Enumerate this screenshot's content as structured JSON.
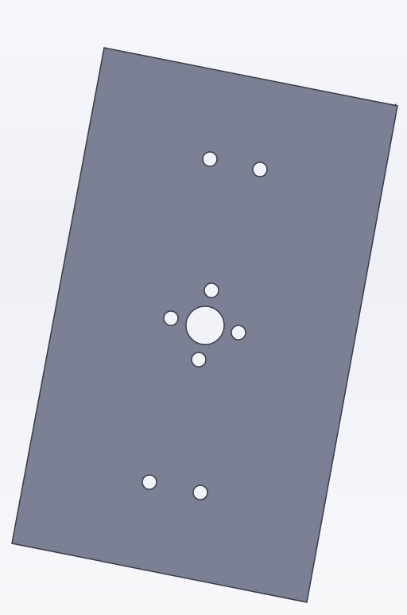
{
  "viewport": {
    "background": "#eef0f6"
  },
  "part": {
    "name": "plate",
    "face_color": "#7c8094",
    "edge_color": "#3a3c46",
    "hole_fill": "#f1f3f8",
    "holes": [
      {
        "id": "hole-top-left",
        "kind": "mount"
      },
      {
        "id": "hole-top-right",
        "kind": "mount"
      },
      {
        "id": "hole-motor-shaft",
        "kind": "center"
      },
      {
        "id": "hole-motor-top",
        "kind": "screw"
      },
      {
        "id": "hole-motor-left",
        "kind": "screw"
      },
      {
        "id": "hole-motor-right",
        "kind": "screw"
      },
      {
        "id": "hole-motor-bottom",
        "kind": "screw"
      },
      {
        "id": "hole-bottom-left",
        "kind": "mount"
      },
      {
        "id": "hole-bottom-right",
        "kind": "mount"
      }
    ]
  }
}
